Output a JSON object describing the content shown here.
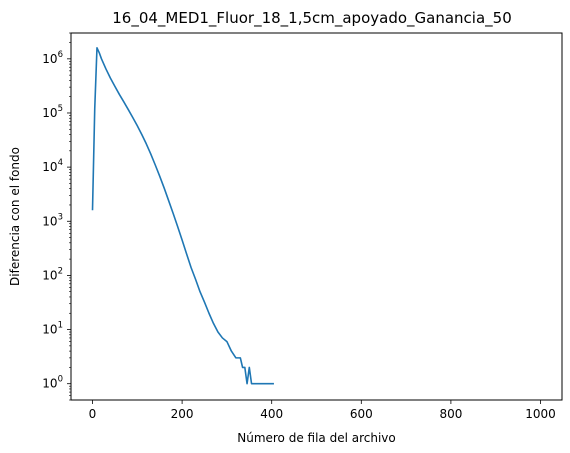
{
  "chart_data": {
    "type": "line",
    "title": "16_04_MED1_Fluor_18_1,5cm_apoyado_Ganancia_50",
    "xlabel": "Número de fila del archivo",
    "ylabel": "Diferencia con el fondo",
    "xlim": [
      -48,
      1048
    ],
    "ylim": [
      0.5,
      3000000
    ],
    "yscale": "log",
    "grid": false,
    "line_color": "#1f77b4",
    "x_ticks": [
      0,
      200,
      400,
      600,
      800,
      1000
    ],
    "x_tick_labels": [
      "0",
      "200",
      "400",
      "600",
      "800",
      "1000"
    ],
    "y_ticks": [
      1,
      10,
      100,
      1000,
      10000,
      100000,
      1000000
    ],
    "y_tick_labels": [
      {
        "base": "10",
        "exp": "0"
      },
      {
        "base": "10",
        "exp": "1"
      },
      {
        "base": "10",
        "exp": "2"
      },
      {
        "base": "10",
        "exp": "3"
      },
      {
        "base": "10",
        "exp": "4"
      },
      {
        "base": "10",
        "exp": "5"
      },
      {
        "base": "10",
        "exp": "6"
      }
    ],
    "series": [
      {
        "x": [
          0,
          5,
          10,
          15,
          20,
          30,
          40,
          50,
          60,
          70,
          80,
          90,
          100,
          110,
          120,
          130,
          140,
          150,
          160,
          170,
          180,
          190,
          200,
          210,
          220,
          230,
          240,
          250,
          260,
          270,
          280,
          290,
          300,
          310,
          320,
          330,
          335,
          340,
          345,
          350,
          355,
          360,
          365,
          370,
          375,
          380,
          385,
          390,
          395,
          400,
          405
        ],
        "y": [
          1600,
          120000,
          1600000,
          1300000,
          1000000,
          650000,
          440000,
          310000,
          220000,
          160000,
          115000,
          82000,
          58000,
          40000,
          27000,
          17500,
          11000,
          6800,
          4100,
          2400,
          1400,
          800,
          450,
          250,
          140,
          85,
          50,
          32,
          20,
          13,
          9,
          7,
          6,
          4,
          3,
          3,
          2,
          2,
          1,
          2,
          1,
          1,
          1,
          1,
          1,
          1,
          1,
          1,
          1,
          1,
          1
        ]
      }
    ]
  }
}
